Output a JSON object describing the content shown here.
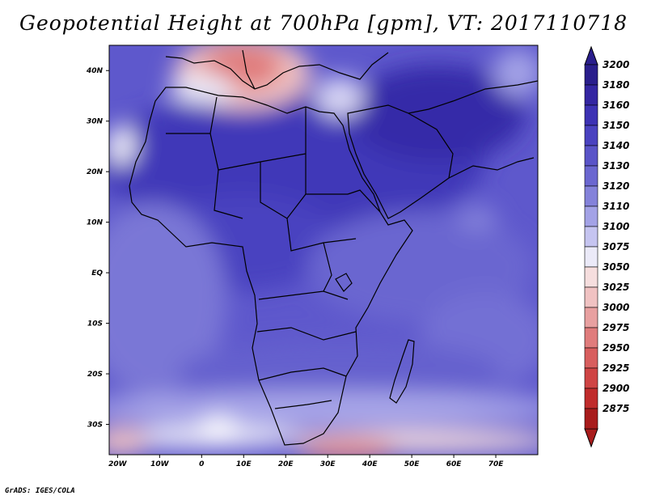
{
  "map": {
    "title": "Geopotential Height at 700hPa [gpm], VT: 2017110718",
    "credit": "GrADS: IGES/COLA",
    "lat_labels": [
      {
        "deg": 40,
        "label": "40N"
      },
      {
        "deg": 30,
        "label": "30N"
      },
      {
        "deg": 20,
        "label": "20N"
      },
      {
        "deg": 10,
        "label": "10N"
      },
      {
        "deg": 0,
        "label": "EQ"
      },
      {
        "deg": -10,
        "label": "10S"
      },
      {
        "deg": -20,
        "label": "20S"
      },
      {
        "deg": -30,
        "label": "30S"
      }
    ],
    "lon_labels": [
      {
        "deg": -20,
        "label": "20W"
      },
      {
        "deg": -10,
        "label": "10W"
      },
      {
        "deg": 0,
        "label": "0"
      },
      {
        "deg": 10,
        "label": "10E"
      },
      {
        "deg": 20,
        "label": "20E"
      },
      {
        "deg": 30,
        "label": "30E"
      },
      {
        "deg": 40,
        "label": "40E"
      },
      {
        "deg": 50,
        "label": "50E"
      },
      {
        "deg": 60,
        "label": "60E"
      },
      {
        "deg": 70,
        "label": "70E"
      }
    ],
    "colorbar": [
      {
        "value": "3200",
        "color": "#2a1e8c"
      },
      {
        "value": "3180",
        "color": "#3426a2"
      },
      {
        "value": "3160",
        "color": "#3d32b4"
      },
      {
        "value": "3150",
        "color": "#4a42c0"
      },
      {
        "value": "3140",
        "color": "#5a54c8"
      },
      {
        "value": "3130",
        "color": "#6b67d0"
      },
      {
        "value": "3120",
        "color": "#8482da"
      },
      {
        "value": "3110",
        "color": "#a3a2e6"
      },
      {
        "value": "3100",
        "color": "#c5c4f0"
      },
      {
        "value": "3075",
        "color": "#ebeaf8"
      },
      {
        "value": "3050",
        "color": "#f6dede"
      },
      {
        "value": "3025",
        "color": "#f0c2c2"
      },
      {
        "value": "3000",
        "color": "#e8a0a0"
      },
      {
        "value": "2975",
        "color": "#e07c7c"
      },
      {
        "value": "2950",
        "color": "#d85e5e"
      },
      {
        "value": "2925",
        "color": "#cf4444"
      },
      {
        "value": "2900",
        "color": "#c02c2c"
      },
      {
        "value": "2875",
        "color": "#a81c1c"
      }
    ],
    "colorbar_top_color": "#2a1e8c",
    "colorbar_bottom_color": "#a81c1c"
  }
}
